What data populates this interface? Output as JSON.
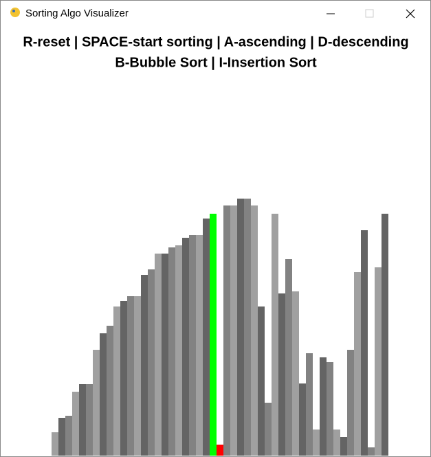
{
  "window_title": "Sorting Algo Visualizer",
  "chart_data": {
    "type": "bar",
    "title": "R-reset | SPACE-start sorting | A-ascending | D-descending",
    "subtitle": "B-Bubble Sort | I-Insertion Sort",
    "values": [
      34,
      55,
      58,
      93,
      104,
      104,
      154,
      178,
      189,
      217,
      225,
      232,
      232,
      263,
      271,
      294,
      294,
      303,
      306,
      317,
      321,
      321,
      345,
      352,
      16,
      364,
      364,
      374,
      374,
      364,
      217,
      77,
      352,
      236,
      286,
      239,
      105,
      149,
      38,
      143,
      136,
      38,
      27,
      154,
      267,
      328,
      12,
      274,
      352
    ],
    "colors": [
      "#a0a0a0",
      "#646464",
      "#828282",
      "#a0a0a0",
      "#646464",
      "#828282",
      "#a0a0a0",
      "#646464",
      "#828282",
      "#a0a0a0",
      "#646464",
      "#828282",
      "#a0a0a0",
      "#646464",
      "#828282",
      "#a0a0a0",
      "#646464",
      "#828282",
      "#a0a0a0",
      "#646464",
      "#828282",
      "#a0a0a0",
      "#646464",
      "#00ff00",
      "#ff0000",
      "#828282",
      "#a0a0a0",
      "#646464",
      "#828282",
      "#a0a0a0",
      "#646464",
      "#828282",
      "#a0a0a0",
      "#646464",
      "#828282",
      "#a0a0a0",
      "#646464",
      "#828282",
      "#a0a0a0",
      "#646464",
      "#828282",
      "#a0a0a0",
      "#646464",
      "#828282",
      "#a0a0a0",
      "#646464",
      "#828282",
      "#a0a0a0",
      "#646464"
    ]
  }
}
